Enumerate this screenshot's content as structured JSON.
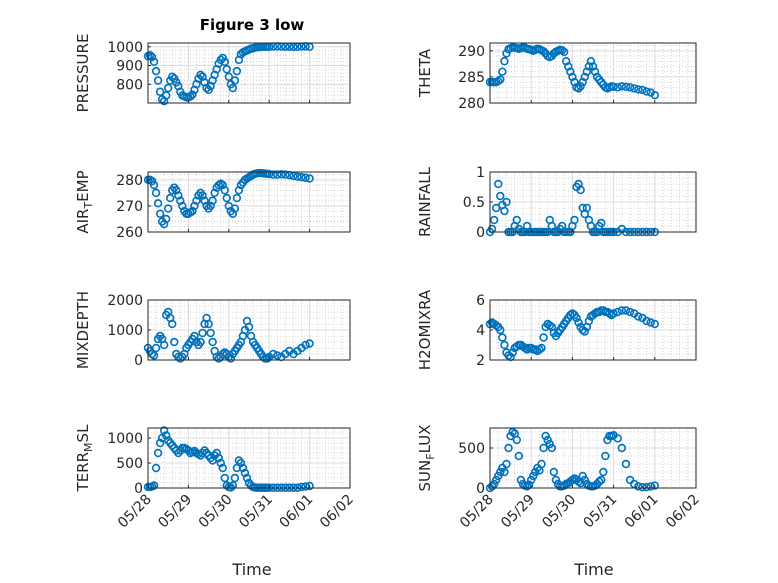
{
  "figure_title": "Figure 3 low",
  "xlabel": "Time",
  "x_tick_labels": [
    "05/28",
    "05/29",
    "05/30",
    "05/31",
    "06/01",
    "06/02"
  ],
  "marker_color": "#0072BD",
  "chart_data": [
    {
      "type": "scatter",
      "title": "Figure 3 low",
      "ylabel": "PRESSURE",
      "ylim": [
        700,
        1020
      ],
      "yticks": [
        800,
        900,
        1000
      ],
      "xlim": [
        0,
        5
      ],
      "x": [
        0.0,
        0.05,
        0.1,
        0.15,
        0.2,
        0.25,
        0.3,
        0.35,
        0.4,
        0.45,
        0.5,
        0.55,
        0.6,
        0.65,
        0.7,
        0.75,
        0.8,
        0.85,
        0.9,
        0.95,
        1.0,
        1.05,
        1.1,
        1.15,
        1.2,
        1.25,
        1.3,
        1.35,
        1.4,
        1.45,
        1.5,
        1.55,
        1.6,
        1.65,
        1.7,
        1.75,
        1.8,
        1.85,
        1.9,
        1.95,
        2.0,
        2.05,
        2.1,
        2.15,
        2.2,
        2.25,
        2.3,
        2.35,
        2.4,
        2.45,
        2.5,
        2.55,
        2.6,
        2.65,
        2.7,
        2.75,
        2.8,
        2.85,
        2.9,
        2.95,
        3.0,
        3.1,
        3.2,
        3.3,
        3.4,
        3.5,
        3.6,
        3.7,
        3.8,
        3.9,
        4.0
      ],
      "y": [
        950,
        955,
        945,
        920,
        870,
        820,
        760,
        720,
        710,
        740,
        780,
        820,
        840,
        830,
        810,
        790,
        760,
        740,
        735,
        730,
        730,
        735,
        745,
        770,
        800,
        830,
        850,
        840,
        810,
        780,
        770,
        790,
        820,
        850,
        880,
        910,
        930,
        940,
        920,
        880,
        840,
        800,
        780,
        820,
        870,
        930,
        960,
        970,
        975,
        980,
        985,
        990,
        992,
        995,
        997,
        998,
        999,
        1000,
        1000,
        1000,
        1000,
        1001,
        1002,
        1001,
        1000,
        1000,
        999,
        1000,
        1001,
        1002,
        1000
      ]
    },
    {
      "type": "scatter",
      "ylabel": "THETA",
      "ylim": [
        280,
        291.5
      ],
      "yticks": [
        280,
        285,
        290
      ],
      "xlim": [
        0,
        5
      ],
      "x": [
        0.0,
        0.05,
        0.1,
        0.15,
        0.2,
        0.25,
        0.3,
        0.35,
        0.4,
        0.45,
        0.5,
        0.55,
        0.6,
        0.65,
        0.7,
        0.75,
        0.8,
        0.85,
        0.9,
        0.95,
        1.0,
        1.05,
        1.1,
        1.15,
        1.2,
        1.25,
        1.3,
        1.35,
        1.4,
        1.45,
        1.5,
        1.55,
        1.6,
        1.65,
        1.7,
        1.75,
        1.8,
        1.85,
        1.9,
        1.95,
        2.0,
        2.05,
        2.1,
        2.15,
        2.2,
        2.25,
        2.3,
        2.35,
        2.4,
        2.45,
        2.5,
        2.55,
        2.6,
        2.65,
        2.7,
        2.75,
        2.8,
        2.85,
        2.9,
        2.95,
        3.0,
        3.1,
        3.2,
        3.3,
        3.4,
        3.5,
        3.6,
        3.7,
        3.8,
        3.9,
        4.0
      ],
      "y": [
        284,
        284,
        284,
        284,
        284.2,
        284.5,
        286,
        288,
        289.5,
        290.3,
        290.5,
        290.7,
        290.6,
        290.5,
        290.4,
        290.5,
        290.7,
        290.6,
        290.4,
        290.3,
        290.2,
        290,
        290.2,
        290.4,
        290.3,
        290.1,
        289.9,
        289.5,
        289,
        288.8,
        289,
        289.5,
        289.8,
        290,
        290.2,
        290.1,
        289.8,
        288,
        287,
        286,
        285,
        284,
        283,
        282.8,
        283.2,
        284,
        285,
        286,
        287,
        288,
        287,
        286,
        285,
        284.5,
        284,
        283.5,
        283,
        282.8,
        283,
        283.2,
        283.1,
        283,
        283.2,
        283.1,
        283,
        282.8,
        282.6,
        282.5,
        282.2,
        282,
        281.5
      ]
    },
    {
      "type": "scatter",
      "ylabel": "AIR_TEMP",
      "ylim": [
        260,
        283
      ],
      "yticks": [
        260,
        270,
        280
      ],
      "xlim": [
        0,
        5
      ],
      "x": [
        0.0,
        0.05,
        0.1,
        0.15,
        0.2,
        0.25,
        0.3,
        0.35,
        0.4,
        0.45,
        0.5,
        0.55,
        0.6,
        0.65,
        0.7,
        0.75,
        0.8,
        0.85,
        0.9,
        0.95,
        1.0,
        1.05,
        1.1,
        1.15,
        1.2,
        1.25,
        1.3,
        1.35,
        1.4,
        1.45,
        1.5,
        1.55,
        1.6,
        1.65,
        1.7,
        1.75,
        1.8,
        1.85,
        1.9,
        1.95,
        2.0,
        2.05,
        2.1,
        2.15,
        2.2,
        2.25,
        2.3,
        2.35,
        2.4,
        2.45,
        2.5,
        2.55,
        2.6,
        2.65,
        2.7,
        2.75,
        2.8,
        2.85,
        2.9,
        2.95,
        3.0,
        3.1,
        3.2,
        3.3,
        3.4,
        3.5,
        3.6,
        3.7,
        3.8,
        3.9,
        4.0
      ],
      "y": [
        280,
        280,
        279.5,
        278,
        275,
        271,
        267,
        264,
        263,
        265,
        269,
        273,
        276,
        277,
        276,
        274,
        272,
        270,
        268,
        267,
        267,
        267.5,
        268,
        270,
        272,
        274,
        275,
        274,
        272,
        270,
        269,
        270,
        272,
        275,
        277,
        278,
        278.5,
        278,
        276,
        273,
        270,
        268,
        267,
        269,
        273,
        276,
        278,
        279,
        280,
        280.5,
        281,
        281.5,
        282,
        282.3,
        282.5,
        282.6,
        282.6,
        282.5,
        282.4,
        282.3,
        282.2,
        282,
        282,
        282.1,
        282,
        281.8,
        281.5,
        281.2,
        281,
        280.8,
        280.5
      ]
    },
    {
      "type": "scatter",
      "ylabel": "RAINFALL",
      "ylim": [
        0,
        1
      ],
      "yticks": [
        0,
        0.5,
        1
      ],
      "xlim": [
        0,
        5
      ],
      "x": [
        0.0,
        0.05,
        0.1,
        0.15,
        0.2,
        0.25,
        0.3,
        0.35,
        0.4,
        0.45,
        0.5,
        0.55,
        0.6,
        0.65,
        0.7,
        0.75,
        0.8,
        0.85,
        0.9,
        0.95,
        1.0,
        1.05,
        1.1,
        1.15,
        1.2,
        1.25,
        1.3,
        1.35,
        1.4,
        1.45,
        1.5,
        1.55,
        1.6,
        1.65,
        1.7,
        1.75,
        1.8,
        1.85,
        1.9,
        1.95,
        2.0,
        2.05,
        2.1,
        2.15,
        2.2,
        2.25,
        2.3,
        2.35,
        2.4,
        2.45,
        2.5,
        2.55,
        2.6,
        2.65,
        2.7,
        2.75,
        2.8,
        2.85,
        2.9,
        2.95,
        3.0,
        3.1,
        3.2,
        3.3,
        3.4,
        3.5,
        3.6,
        3.7,
        3.8,
        3.9,
        4.0
      ],
      "y": [
        0,
        0.05,
        0.2,
        0.4,
        0.8,
        0.6,
        0.45,
        0.35,
        0.5,
        0,
        0,
        0,
        0.1,
        0.2,
        0.05,
        0,
        0,
        0,
        0.1,
        0,
        0,
        0,
        0,
        0,
        0,
        0,
        0,
        0,
        0,
        0.2,
        0.1,
        0,
        0,
        0,
        0.05,
        0.1,
        0,
        0,
        0,
        0,
        0.1,
        0.2,
        0.75,
        0.8,
        0.7,
        0.4,
        0.3,
        0.4,
        0.2,
        0.1,
        0,
        0,
        0,
        0.1,
        0.15,
        0,
        0,
        0,
        0,
        0,
        0,
        0,
        0.05,
        0,
        0,
        0,
        0,
        0,
        0,
        0,
        0
      ]
    },
    {
      "type": "scatter",
      "ylabel": "MIXDEPTH",
      "ylim": [
        0,
        2000
      ],
      "yticks": [
        0,
        1000,
        2000
      ],
      "xlim": [
        0,
        5
      ],
      "x": [
        0.0,
        0.05,
        0.1,
        0.15,
        0.2,
        0.25,
        0.3,
        0.35,
        0.4,
        0.45,
        0.5,
        0.55,
        0.6,
        0.65,
        0.7,
        0.75,
        0.8,
        0.85,
        0.9,
        0.95,
        1.0,
        1.05,
        1.1,
        1.15,
        1.2,
        1.25,
        1.3,
        1.35,
        1.4,
        1.45,
        1.5,
        1.55,
        1.6,
        1.65,
        1.7,
        1.75,
        1.8,
        1.85,
        1.9,
        1.95,
        2.0,
        2.05,
        2.1,
        2.15,
        2.2,
        2.25,
        2.3,
        2.35,
        2.4,
        2.45,
        2.5,
        2.55,
        2.6,
        2.65,
        2.7,
        2.75,
        2.8,
        2.85,
        2.9,
        2.95,
        3.0,
        3.1,
        3.2,
        3.3,
        3.4,
        3.5,
        3.6,
        3.7,
        3.8,
        3.9,
        4.0
      ],
      "y": [
        400,
        300,
        200,
        150,
        400,
        700,
        800,
        700,
        500,
        1500,
        1600,
        1400,
        1200,
        600,
        200,
        100,
        50,
        100,
        200,
        400,
        500,
        600,
        700,
        800,
        600,
        500,
        600,
        900,
        1200,
        1400,
        1200,
        900,
        600,
        300,
        100,
        50,
        100,
        200,
        250,
        200,
        100,
        50,
        200,
        300,
        400,
        500,
        600,
        800,
        1000,
        1300,
        1100,
        800,
        600,
        500,
        400,
        300,
        200,
        100,
        50,
        50,
        100,
        200,
        150,
        100,
        200,
        300,
        200,
        300,
        400,
        500,
        550
      ]
    },
    {
      "type": "scatter",
      "ylabel": "H2OMIXRA",
      "ylim": [
        2,
        6
      ],
      "yticks": [
        2,
        4,
        6
      ],
      "xlim": [
        0,
        5
      ],
      "x": [
        0.0,
        0.05,
        0.1,
        0.15,
        0.2,
        0.25,
        0.3,
        0.35,
        0.4,
        0.45,
        0.5,
        0.55,
        0.6,
        0.65,
        0.7,
        0.75,
        0.8,
        0.85,
        0.9,
        0.95,
        1.0,
        1.05,
        1.1,
        1.15,
        1.2,
        1.25,
        1.3,
        1.35,
        1.4,
        1.45,
        1.5,
        1.55,
        1.6,
        1.65,
        1.7,
        1.75,
        1.8,
        1.85,
        1.9,
        1.95,
        2.0,
        2.05,
        2.1,
        2.15,
        2.2,
        2.25,
        2.3,
        2.35,
        2.4,
        2.45,
        2.5,
        2.55,
        2.6,
        2.65,
        2.7,
        2.75,
        2.8,
        2.85,
        2.9,
        2.95,
        3.0,
        3.1,
        3.2,
        3.3,
        3.4,
        3.5,
        3.6,
        3.7,
        3.8,
        3.9,
        4.0
      ],
      "y": [
        4.4,
        4.5,
        4.4,
        4.3,
        4.2,
        4.0,
        3.5,
        3.0,
        2.5,
        2.3,
        2.2,
        2.5,
        2.8,
        2.9,
        3.0,
        3.0,
        2.9,
        2.8,
        2.7,
        2.8,
        2.8,
        2.7,
        2.7,
        2.6,
        2.7,
        2.8,
        3.5,
        4.2,
        4.4,
        4.3,
        4.2,
        3.8,
        3.6,
        3.8,
        4.0,
        4.2,
        4.4,
        4.6,
        4.8,
        5.0,
        5.1,
        5.0,
        4.8,
        4.5,
        4.2,
        4.0,
        3.9,
        4.2,
        4.6,
        4.9,
        5.0,
        5.1,
        5.2,
        5.2,
        5.3,
        5.3,
        5.2,
        5.2,
        5.1,
        5.0,
        5.1,
        5.2,
        5.3,
        5.3,
        5.2,
        5.1,
        4.9,
        4.8,
        4.6,
        4.5,
        4.4
      ]
    },
    {
      "type": "scatter",
      "ylabel": "TERR_MSL",
      "ylim": [
        0,
        1200
      ],
      "yticks": [
        0,
        500,
        1000
      ],
      "xlim": [
        0,
        5
      ],
      "x": [
        0.0,
        0.05,
        0.1,
        0.15,
        0.2,
        0.25,
        0.3,
        0.35,
        0.4,
        0.45,
        0.5,
        0.55,
        0.6,
        0.65,
        0.7,
        0.75,
        0.8,
        0.85,
        0.9,
        0.95,
        1.0,
        1.05,
        1.1,
        1.15,
        1.2,
        1.25,
        1.3,
        1.35,
        1.4,
        1.45,
        1.5,
        1.55,
        1.6,
        1.65,
        1.7,
        1.75,
        1.8,
        1.85,
        1.9,
        1.95,
        2.0,
        2.05,
        2.1,
        2.15,
        2.2,
        2.25,
        2.3,
        2.35,
        2.4,
        2.45,
        2.5,
        2.55,
        2.6,
        2.65,
        2.7,
        2.75,
        2.8,
        2.85,
        2.9,
        2.95,
        3.0,
        3.1,
        3.2,
        3.3,
        3.4,
        3.5,
        3.6,
        3.7,
        3.8,
        3.9,
        4.0
      ],
      "y": [
        20,
        20,
        30,
        50,
        400,
        700,
        900,
        1000,
        1150,
        1050,
        950,
        900,
        850,
        800,
        750,
        700,
        750,
        800,
        800,
        780,
        750,
        700,
        720,
        740,
        700,
        680,
        650,
        700,
        750,
        700,
        650,
        600,
        550,
        650,
        700,
        600,
        500,
        400,
        200,
        50,
        20,
        10,
        50,
        200,
        400,
        550,
        500,
        400,
        300,
        200,
        100,
        50,
        20,
        10,
        5,
        5,
        5,
        5,
        5,
        5,
        5,
        5,
        5,
        5,
        5,
        5,
        5,
        5,
        20,
        30,
        40
      ]
    },
    {
      "type": "scatter",
      "ylabel": "SUN_FLUX",
      "ylim": [
        0,
        750
      ],
      "yticks": [
        0,
        500
      ],
      "xlim": [
        0,
        5
      ],
      "x": [
        0.0,
        0.05,
        0.1,
        0.15,
        0.2,
        0.25,
        0.3,
        0.35,
        0.4,
        0.45,
        0.5,
        0.55,
        0.6,
        0.65,
        0.7,
        0.75,
        0.8,
        0.85,
        0.9,
        0.95,
        1.0,
        1.05,
        1.1,
        1.15,
        1.2,
        1.25,
        1.3,
        1.35,
        1.4,
        1.45,
        1.5,
        1.55,
        1.6,
        1.65,
        1.7,
        1.75,
        1.8,
        1.85,
        1.9,
        1.95,
        2.0,
        2.05,
        2.1,
        2.15,
        2.2,
        2.25,
        2.3,
        2.35,
        2.4,
        2.45,
        2.5,
        2.55,
        2.6,
        2.65,
        2.7,
        2.75,
        2.8,
        2.85,
        2.9,
        2.95,
        3.0,
        3.1,
        3.2,
        3.3,
        3.4,
        3.5,
        3.6,
        3.7,
        3.8,
        3.9,
        4.0
      ],
      "y": [
        0,
        20,
        50,
        100,
        150,
        200,
        250,
        200,
        300,
        500,
        650,
        700,
        680,
        600,
        400,
        100,
        50,
        30,
        20,
        40,
        100,
        150,
        200,
        250,
        220,
        300,
        500,
        650,
        600,
        550,
        500,
        200,
        100,
        50,
        20,
        20,
        30,
        50,
        60,
        80,
        100,
        120,
        100,
        80,
        60,
        150,
        100,
        50,
        30,
        20,
        20,
        30,
        50,
        80,
        100,
        200,
        400,
        600,
        650,
        650,
        660,
        620,
        500,
        300,
        100,
        50,
        20,
        10,
        10,
        20,
        30
      ]
    }
  ]
}
